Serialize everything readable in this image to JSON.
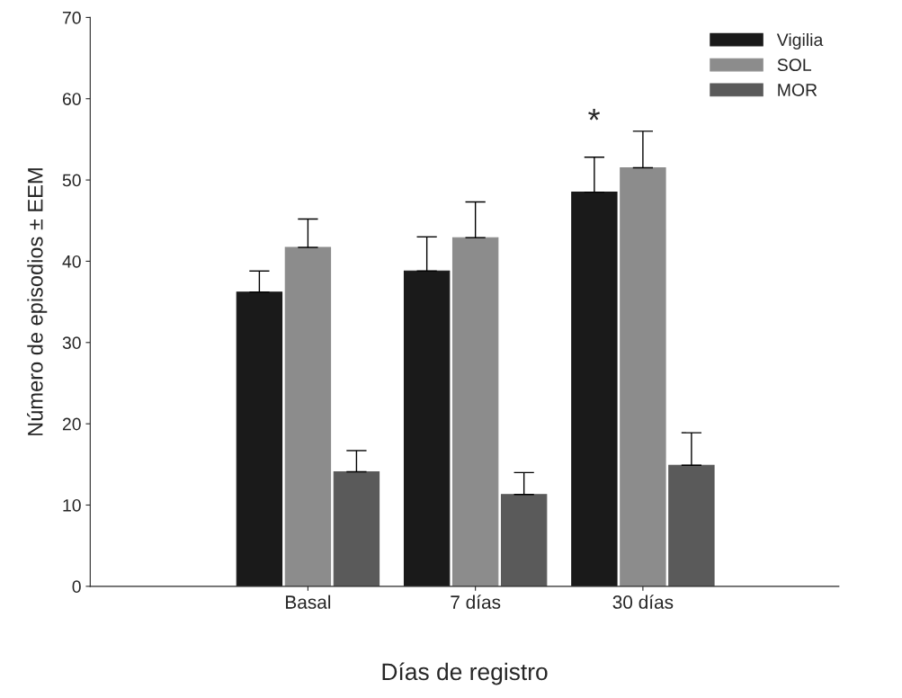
{
  "chart_data": {
    "type": "bar",
    "xlabel": "Días de registro",
    "ylabel": "Número de episodios ± EEM",
    "categories": [
      "Basal",
      "7 días",
      "30 días"
    ],
    "series": [
      {
        "name": "Vigilia",
        "color": "#1a1a1a",
        "values": [
          36.2,
          38.8,
          48.5
        ],
        "errors": [
          [
            36.2,
            38.8
          ],
          [
            38.8,
            43.0
          ],
          [
            48.5,
            52.8
          ]
        ]
      },
      {
        "name": "SOL",
        "color": "#8c8c8c",
        "values": [
          41.7,
          42.9,
          51.5
        ],
        "errors": [
          [
            41.7,
            45.2
          ],
          [
            42.9,
            47.3
          ],
          [
            51.5,
            56.0
          ]
        ]
      },
      {
        "name": "MOR",
        "color": "#5a5a5a",
        "values": [
          14.1,
          11.3,
          14.9
        ],
        "errors": [
          [
            14.1,
            16.7
          ],
          [
            11.3,
            14.0
          ],
          [
            14.9,
            18.9
          ]
        ]
      }
    ],
    "annotations": [
      "*"
    ],
    "ylim": [
      0,
      70
    ],
    "yticks": [
      0,
      10,
      20,
      30,
      40,
      50,
      60,
      70
    ],
    "legend": "top right",
    "grid": false
  }
}
